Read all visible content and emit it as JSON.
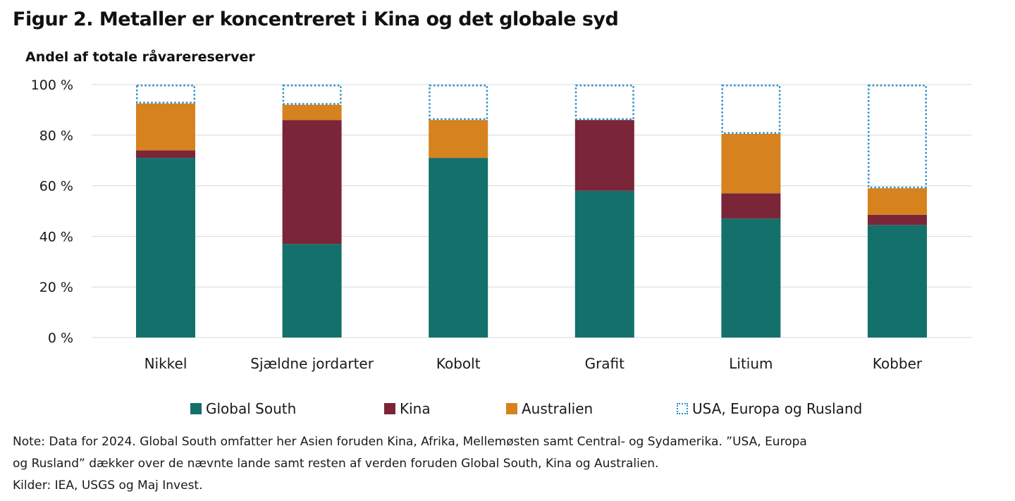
{
  "title": "Figur 2. Metaller er koncentreret i Kina og det globale syd",
  "chart_data": {
    "type": "bar",
    "stacked": true,
    "ylabel": "Andel af totale råvarereserver",
    "ylim": [
      0,
      100
    ],
    "yticks": [
      "0 %",
      "20 %",
      "40 %",
      "60 %",
      "80 %",
      "100 %"
    ],
    "ytick_values": [
      0,
      20,
      40,
      60,
      80,
      100
    ],
    "grid": true,
    "legend_position": "bottom",
    "categories": [
      "Nikkel",
      "Sjældne jordarter",
      "Kobolt",
      "Grafit",
      "Litium",
      "Kobber"
    ],
    "series": [
      {
        "name": "Global South",
        "color": "#13706b",
        "style": "solid",
        "values": [
          71,
          37,
          71,
          58,
          47,
          44.5
        ]
      },
      {
        "name": "Kina",
        "color": "#7b2538",
        "style": "solid",
        "values": [
          3,
          49,
          0,
          28,
          10,
          4
        ]
      },
      {
        "name": "Australien",
        "color": "#d6821f",
        "style": "solid",
        "values": [
          18.5,
          6,
          15,
          0,
          23.5,
          10.5
        ]
      },
      {
        "name": "USA, Europa og Rusland",
        "color": "#2e8ec8",
        "style": "dotted-outline",
        "values": [
          7.5,
          8,
          14,
          14,
          19.5,
          41
        ]
      }
    ]
  },
  "note": {
    "line1": "Note: Data for 2024. Global South omfatter her Asien foruden Kina, Afrika, Mellemøsten samt Central- og Sydamerika. ”USA, Europa",
    "line2": "og Rusland” dækker over de nævnte lande samt resten af verden foruden Global South, Kina og Australien.",
    "sources": "Kilder: IEA, USGS og Maj Invest."
  }
}
